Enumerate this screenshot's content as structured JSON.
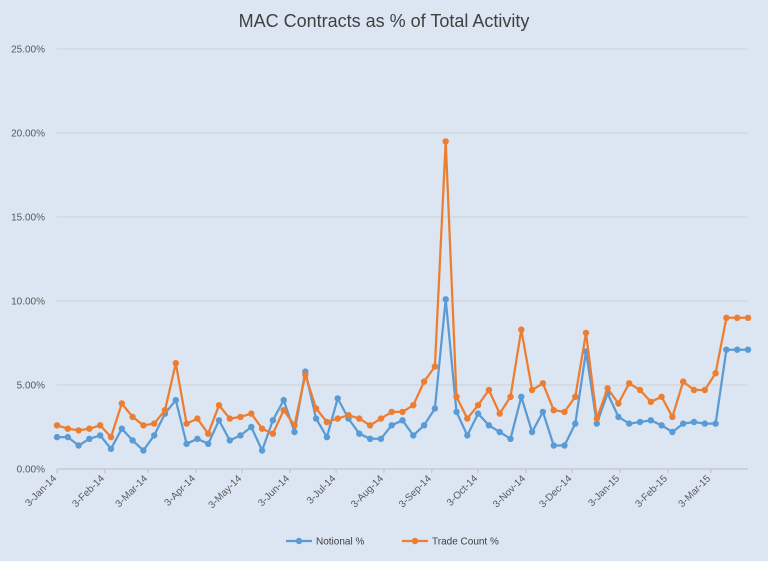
{
  "chart_data": {
    "type": "line",
    "title": "MAC Contracts as % of Total Activity",
    "xlabel": "",
    "ylabel": "",
    "ylim": [
      0,
      0.25
    ],
    "y_ticks": [
      "0.00%",
      "5.00%",
      "10.00%",
      "15.00%",
      "20.00%",
      "25.00%"
    ],
    "x_tick_labels": [
      "3-Jan-14",
      "3-Feb-14",
      "3-Mar-14",
      "3-Apr-14",
      "3-May-14",
      "3-Jun-14",
      "3-Jul-14",
      "3-Aug-14",
      "3-Sep-14",
      "3-Oct-14",
      "3-Nov-14",
      "3-Dec-14",
      "3-Jan-15",
      "3-Feb-15",
      "3-Mar-15"
    ],
    "x": [
      "2014-01-03",
      "2014-01-10",
      "2014-01-17",
      "2014-01-24",
      "2014-01-31",
      "2014-02-07",
      "2014-02-14",
      "2014-02-21",
      "2014-02-28",
      "2014-03-07",
      "2014-03-14",
      "2014-03-21",
      "2014-03-28",
      "2014-04-04",
      "2014-04-11",
      "2014-04-18",
      "2014-04-25",
      "2014-05-02",
      "2014-05-09",
      "2014-05-16",
      "2014-05-23",
      "2014-05-30",
      "2014-06-06",
      "2014-06-13",
      "2014-06-20",
      "2014-06-27",
      "2014-07-04",
      "2014-07-11",
      "2014-07-18",
      "2014-07-25",
      "2014-08-01",
      "2014-08-08",
      "2014-08-15",
      "2014-08-22",
      "2014-08-29",
      "2014-09-05",
      "2014-09-12",
      "2014-09-19",
      "2014-09-26",
      "2014-10-03",
      "2014-10-10",
      "2014-10-17",
      "2014-10-24",
      "2014-10-31",
      "2014-11-07",
      "2014-11-14",
      "2014-11-21",
      "2014-11-28",
      "2014-12-05",
      "2014-12-12",
      "2014-12-19",
      "2014-12-26",
      "2015-01-02",
      "2015-01-09",
      "2015-01-16",
      "2015-01-23",
      "2015-01-30",
      "2015-02-06",
      "2015-02-13",
      "2015-02-20",
      "2015-02-27",
      "2015-03-06",
      "2015-03-13",
      "2015-03-20",
      "2015-03-27"
    ],
    "series": [
      {
        "name": "Notional %",
        "color": "#5b9bd5",
        "values": [
          0.019,
          0.019,
          0.014,
          0.018,
          0.02,
          0.012,
          0.024,
          0.017,
          0.011,
          0.02,
          0.033,
          0.041,
          0.015,
          0.018,
          0.015,
          0.029,
          0.017,
          0.02,
          0.025,
          0.011,
          0.029,
          0.041,
          0.022,
          0.058,
          0.03,
          0.019,
          0.042,
          0.03,
          0.021,
          0.018,
          0.018,
          0.026,
          0.029,
          0.02,
          0.026,
          0.036,
          0.101,
          0.034,
          0.02,
          0.033,
          0.026,
          0.022,
          0.018,
          0.043,
          0.022,
          0.034,
          0.014,
          0.014,
          0.027,
          0.07,
          0.027,
          0.045,
          0.031,
          0.027,
          0.028,
          0.029,
          0.026,
          0.022,
          0.027,
          0.028,
          0.027,
          0.027,
          0.071,
          0.071,
          0.071
        ]
      },
      {
        "name": "Trade Count %",
        "color": "#ed7d31",
        "values": [
          0.026,
          0.024,
          0.023,
          0.024,
          0.026,
          0.019,
          0.039,
          0.031,
          0.026,
          0.027,
          0.035,
          0.063,
          0.027,
          0.03,
          0.021,
          0.038,
          0.03,
          0.031,
          0.033,
          0.024,
          0.021,
          0.035,
          0.026,
          0.056,
          0.036,
          0.028,
          0.03,
          0.032,
          0.03,
          0.026,
          0.03,
          0.034,
          0.034,
          0.038,
          0.052,
          0.061,
          0.195,
          0.043,
          0.03,
          0.038,
          0.047,
          0.033,
          0.043,
          0.083,
          0.047,
          0.051,
          0.035,
          0.034,
          0.043,
          0.081,
          0.03,
          0.048,
          0.039,
          0.051,
          0.047,
          0.04,
          0.043,
          0.031,
          0.052,
          0.047,
          0.047,
          0.057,
          0.09,
          0.09,
          0.09
        ]
      }
    ],
    "grid": true,
    "legend_position": "bottom"
  }
}
